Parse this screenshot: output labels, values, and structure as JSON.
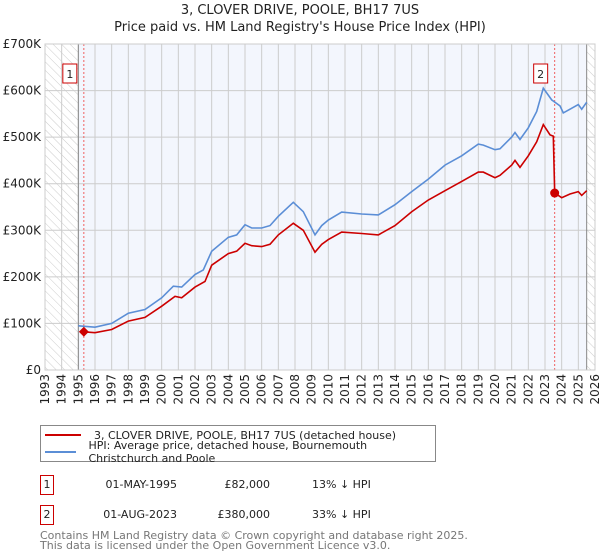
{
  "chart_data": {
    "type": "line",
    "title": "3, CLOVER DRIVE, POOLE, BH17 7US",
    "subtitle": "Price paid vs. HM Land Registry's House Price Index (HPI)",
    "xlim": [
      1993,
      2026
    ],
    "ylim": [
      0,
      700000
    ],
    "x_ticks": [
      "1993",
      "1994",
      "1995",
      "1996",
      "1997",
      "1998",
      "1999",
      "2000",
      "2001",
      "2002",
      "2003",
      "2004",
      "2005",
      "2006",
      "2007",
      "2008",
      "2009",
      "2010",
      "2011",
      "2012",
      "2013",
      "2014",
      "2015",
      "2016",
      "2017",
      "2018",
      "2019",
      "2020",
      "2021",
      "2022",
      "2023",
      "2024",
      "2025",
      "2026"
    ],
    "y_ticks": [
      {
        "v": 0,
        "label": "£0"
      },
      {
        "v": 100000,
        "label": "£100K"
      },
      {
        "v": 200000,
        "label": "£200K"
      },
      {
        "v": 300000,
        "label": "£300K"
      },
      {
        "v": 400000,
        "label": "£400K"
      },
      {
        "v": 500000,
        "label": "£500K"
      },
      {
        "v": 600000,
        "label": "£600K"
      },
      {
        "v": 700000,
        "label": "£700K"
      }
    ],
    "grid": true,
    "hatched_ranges": [
      [
        1993,
        1995
      ],
      [
        2025.5,
        2026
      ]
    ],
    "colors": {
      "price": "#cc0000",
      "hpi": "#5b8ed6",
      "plot_bg": "#f3f6fd"
    },
    "series": [
      {
        "name": "3, CLOVER DRIVE, POOLE, BH17 7US (detached house)",
        "key": "price",
        "x": [
          1995.33,
          1996,
          1997,
          1998,
          1999,
          2000,
          2000.8,
          2001.2,
          2002,
          2002.6,
          2003,
          2004,
          2004.5,
          2005,
          2005.4,
          2006,
          2006.5,
          2007,
          2007.9,
          2008.5,
          2009.2,
          2009.6,
          2010,
          2010.8,
          2012,
          2013,
          2014,
          2015,
          2016,
          2017,
          2018,
          2019,
          2019.3,
          2020,
          2020.3,
          2021,
          2021.2,
          2021.5,
          2022,
          2022.5,
          2022.9,
          2023.3,
          2023.5,
          2023.58,
          2024,
          2024.5,
          2025,
          2025.2,
          2025.5
        ],
        "values": [
          82000,
          80000,
          87000,
          105000,
          113000,
          137000,
          158000,
          155000,
          178000,
          190000,
          225000,
          250000,
          255000,
          272000,
          267000,
          265000,
          270000,
          290000,
          315000,
          300000,
          253000,
          270000,
          280000,
          296000,
          293000,
          290000,
          310000,
          340000,
          365000,
          385000,
          405000,
          425000,
          425000,
          413000,
          418000,
          440000,
          450000,
          435000,
          460000,
          490000,
          527000,
          505000,
          502000,
          380000,
          370000,
          378000,
          383000,
          375000,
          385000
        ]
      },
      {
        "name": "HPI: Average price, detached house, Bournemouth Christchurch and Poole",
        "key": "hpi",
        "x": [
          1995,
          1996,
          1997,
          1998,
          1999,
          2000,
          2000.7,
          2001.2,
          2002,
          2002.5,
          2003,
          2004,
          2004.5,
          2005,
          2005.4,
          2006,
          2006.5,
          2007,
          2007.9,
          2008.5,
          2009.2,
          2009.6,
          2010,
          2010.8,
          2012,
          2013,
          2014,
          2015,
          2016,
          2017,
          2018,
          2019,
          2019.3,
          2020,
          2020.3,
          2021,
          2021.2,
          2021.5,
          2022,
          2022.5,
          2022.9,
          2023.4,
          2023.9,
          2024.1,
          2024.5,
          2025,
          2025.2,
          2025.5
        ],
        "values": [
          95000,
          92000,
          100000,
          122000,
          130000,
          155000,
          180000,
          178000,
          205000,
          215000,
          255000,
          285000,
          290000,
          312000,
          305000,
          305000,
          310000,
          330000,
          360000,
          340000,
          290000,
          310000,
          322000,
          339000,
          335000,
          333000,
          355000,
          383000,
          410000,
          440000,
          460000,
          485000,
          483000,
          473000,
          475000,
          500000,
          510000,
          495000,
          520000,
          555000,
          605000,
          580000,
          567000,
          552000,
          560000,
          570000,
          560000,
          575000
        ]
      }
    ],
    "annotations": [
      {
        "label": "1",
        "x": 1995.33,
        "y": 82000,
        "marker": "diamond"
      },
      {
        "label": "2",
        "x": 2023.58,
        "y": 380000,
        "marker": "circle"
      }
    ]
  },
  "legend": {
    "price_label": "3, CLOVER DRIVE, POOLE, BH17 7US (detached house)",
    "hpi_label": "HPI: Average price, detached house, Bournemouth Christchurch and Poole"
  },
  "sales": [
    {
      "num": "1",
      "date": "01-MAY-1995",
      "price": "£82,000",
      "delta": "13% ↓ HPI"
    },
    {
      "num": "2",
      "date": "01-AUG-2023",
      "price": "£380,000",
      "delta": "33% ↓ HPI"
    }
  ],
  "footer": {
    "line1": "Contains HM Land Registry data © Crown copyright and database right 2025.",
    "line2": "This data is licensed under the Open Government Licence v3.0."
  }
}
